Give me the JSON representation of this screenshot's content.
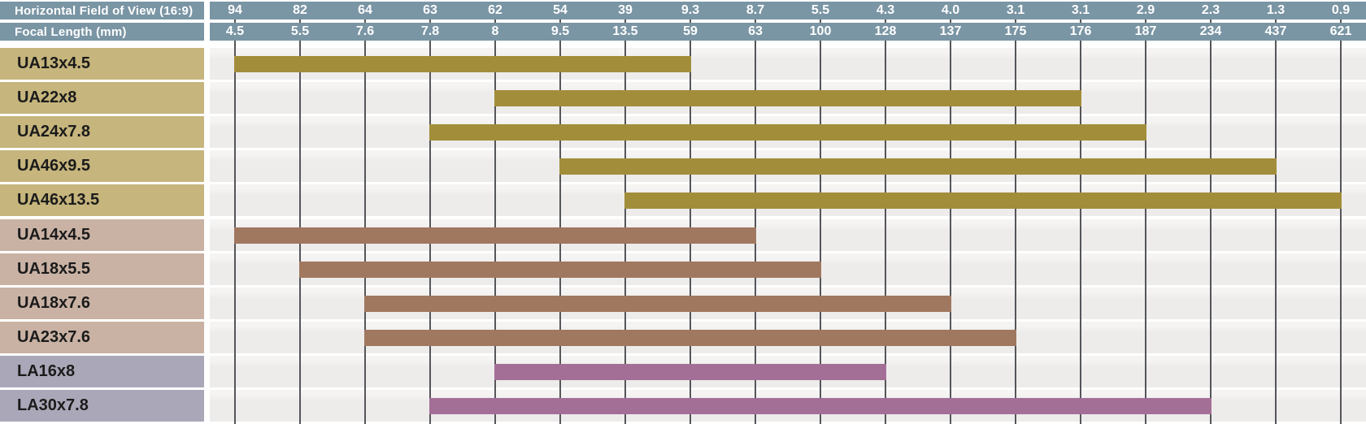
{
  "header": {
    "row1_label": "Horizontal Field of View (16:9)",
    "row2_label": "Focal Length (mm)",
    "hfov_values": [
      "94",
      "82",
      "64",
      "63",
      "62",
      "54",
      "39",
      "9.3",
      "8.7",
      "5.5",
      "4.3",
      "4.0",
      "3.1",
      "3.1",
      "2.9",
      "2.3",
      "1.3",
      "0.9"
    ],
    "focal_values": [
      "4.5",
      "5.5",
      "7.6",
      "7.8",
      "8",
      "9.5",
      "13.5",
      "59",
      "63",
      "100",
      "128",
      "137",
      "175",
      "176",
      "187",
      "234",
      "437",
      "621"
    ]
  },
  "lenses": [
    {
      "label": "UA13x4.5",
      "group": "gold",
      "start": "4.5",
      "end": "59"
    },
    {
      "label": "UA22x8",
      "group": "gold",
      "start": "8",
      "end": "176"
    },
    {
      "label": "UA24x7.8",
      "group": "gold",
      "start": "7.8",
      "end": "187"
    },
    {
      "label": "UA46x9.5",
      "group": "gold",
      "start": "9.5",
      "end": "437"
    },
    {
      "label": "UA46x13.5",
      "group": "gold",
      "start": "13.5",
      "end": "621"
    },
    {
      "label": "UA14x4.5",
      "group": "rose",
      "start": "4.5",
      "end": "63"
    },
    {
      "label": "UA18x5.5",
      "group": "rose",
      "start": "5.5",
      "end": "100"
    },
    {
      "label": "UA18x7.6",
      "group": "rose",
      "start": "7.6",
      "end": "137"
    },
    {
      "label": "UA23x7.6",
      "group": "rose",
      "start": "7.6",
      "end": "175"
    },
    {
      "label": "LA16x8",
      "group": "plum",
      "start": "8",
      "end": "128"
    },
    {
      "label": "LA30x7.8",
      "group": "plum",
      "start": "7.8",
      "end": "234"
    }
  ],
  "colors": {
    "header_bg": "#7a95a4",
    "header_text": "#ffffff",
    "grid_line": "#55565a",
    "row_track_bg": "#edeceb",
    "label_text": "#1b1b1b",
    "groups": {
      "gold": {
        "label_bg": "#c6b57c",
        "bar": "#a28d3a"
      },
      "rose": {
        "label_bg": "#c9b2a4",
        "bar": "#a0775f"
      },
      "plum": {
        "label_bg": "#aaa7b8",
        "bar": "#a46f97"
      }
    }
  },
  "chart_data": {
    "type": "bar",
    "subtype": "horizontal-range",
    "title": "Lens focal length / field of view range comparison",
    "x_scale": "ordinal (equal spacing per tick column)",
    "grid": "vertical line at every focal-length tick",
    "legend_position": "none (row label chips are color-coded by lens family)",
    "axes": [
      {
        "label": "Horizontal Field of View (16:9)",
        "ticks": [
          94,
          82,
          64,
          63,
          62,
          54,
          39,
          9.3,
          8.7,
          5.5,
          4.3,
          4.0,
          3.1,
          3.1,
          2.9,
          2.3,
          1.3,
          0.9
        ]
      },
      {
        "label": "Focal Length (mm)",
        "ticks": [
          4.5,
          5.5,
          7.6,
          7.8,
          8,
          9.5,
          13.5,
          59,
          63,
          100,
          128,
          137,
          175,
          176,
          187,
          234,
          437,
          621
        ]
      }
    ],
    "series": [
      {
        "name": "UA13x4.5",
        "family": "gold",
        "focal_range_mm": [
          4.5,
          59
        ],
        "hfov_range_deg": [
          94,
          9.3
        ]
      },
      {
        "name": "UA22x8",
        "family": "gold",
        "focal_range_mm": [
          8,
          176
        ],
        "hfov_range_deg": [
          62,
          3.1
        ]
      },
      {
        "name": "UA24x7.8",
        "family": "gold",
        "focal_range_mm": [
          7.8,
          187
        ],
        "hfov_range_deg": [
          63,
          2.9
        ]
      },
      {
        "name": "UA46x9.5",
        "family": "gold",
        "focal_range_mm": [
          9.5,
          437
        ],
        "hfov_range_deg": [
          54,
          1.3
        ]
      },
      {
        "name": "UA46x13.5",
        "family": "gold",
        "focal_range_mm": [
          13.5,
          621
        ],
        "hfov_range_deg": [
          39,
          0.9
        ]
      },
      {
        "name": "UA14x4.5",
        "family": "rose",
        "focal_range_mm": [
          4.5,
          63
        ],
        "hfov_range_deg": [
          94,
          8.7
        ]
      },
      {
        "name": "UA18x5.5",
        "family": "rose",
        "focal_range_mm": [
          5.5,
          100
        ],
        "hfov_range_deg": [
          82,
          5.5
        ]
      },
      {
        "name": "UA18x7.6",
        "family": "rose",
        "focal_range_mm": [
          7.6,
          137
        ],
        "hfov_range_deg": [
          64,
          4.0
        ]
      },
      {
        "name": "UA23x7.6",
        "family": "rose",
        "focal_range_mm": [
          7.6,
          175
        ],
        "hfov_range_deg": [
          64,
          3.1
        ]
      },
      {
        "name": "LA16x8",
        "family": "plum",
        "focal_range_mm": [
          8,
          128
        ],
        "hfov_range_deg": [
          62,
          4.3
        ]
      },
      {
        "name": "LA30x7.8",
        "family": "plum",
        "focal_range_mm": [
          7.8,
          234
        ],
        "hfov_range_deg": [
          63,
          2.3
        ]
      }
    ]
  }
}
